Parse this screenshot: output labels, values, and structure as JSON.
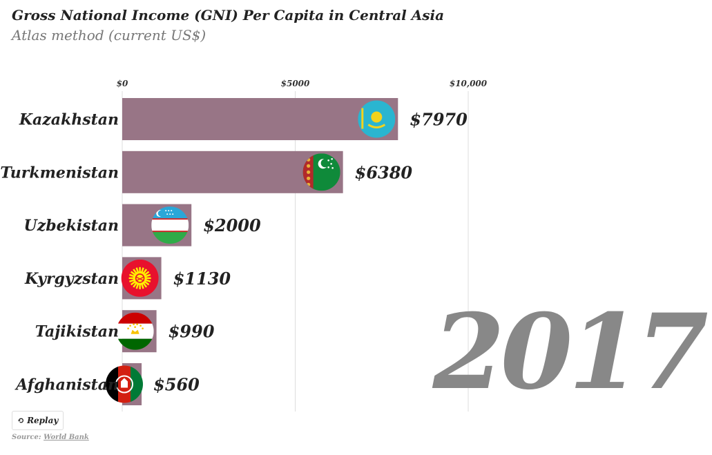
{
  "header": {
    "title": "Gross National Income (GNI) Per Capita in Central Asia",
    "subtitle": "Atlas method (current US$)"
  },
  "controls": {
    "replay_label": "Replay"
  },
  "source": {
    "prefix": "Source:",
    "link_text": "World Bank"
  },
  "colors": {
    "bar": "#987586",
    "grid": "#dddddd",
    "year": "#888888"
  },
  "chart_data": {
    "type": "bar",
    "orientation": "horizontal",
    "title": "Gross National Income (GNI) Per Capita in Central Asia",
    "subtitle": "Atlas method (current US$)",
    "year": "2017",
    "categories": [
      "Kazakhstan",
      "Turkmenistan",
      "Uzbekistan",
      "Kyrgyzstan",
      "Tajikistan",
      "Afghanistan"
    ],
    "values": [
      7970,
      6380,
      2000,
      1130,
      990,
      560
    ],
    "value_labels": [
      "$7970",
      "$6380",
      "$2000",
      "$1130",
      "$990",
      "$560"
    ],
    "flags": [
      "kazakhstan-flag",
      "turkmenistan-flag",
      "uzbekistan-flag",
      "kyrgyzstan-flag",
      "tajikistan-flag",
      "afghanistan-flag"
    ],
    "xlim": [
      0,
      10000
    ],
    "ticks": [
      0,
      5000,
      10000
    ],
    "tick_labels": [
      "$0",
      "$5000",
      "$10,000"
    ],
    "xlabel": "",
    "ylabel": "",
    "grid": true,
    "axis_position": "top"
  }
}
